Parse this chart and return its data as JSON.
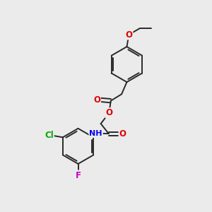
{
  "bg_color": "#ebebeb",
  "bond_color": "#2a2a2a",
  "atom_colors": {
    "O": "#e00000",
    "N": "#0000ee",
    "Cl": "#00aa00",
    "F": "#cc00cc",
    "H": "#888888",
    "C": "#2a2a2a"
  },
  "bond_width": 1.4,
  "font_size": 8.5
}
